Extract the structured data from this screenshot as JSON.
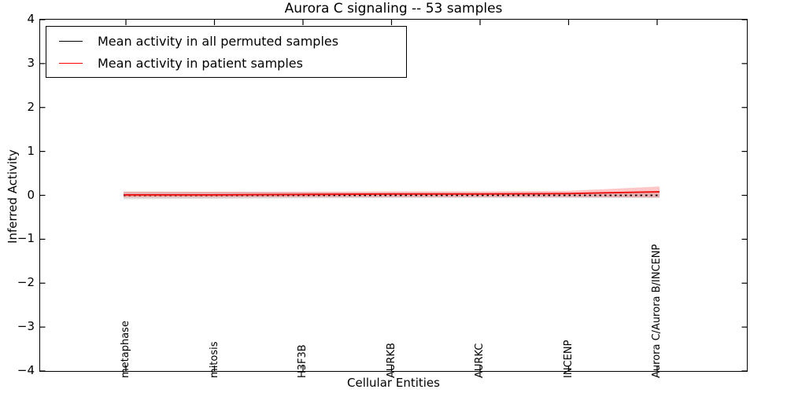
{
  "title": "Aurora C signaling -- 53 samples",
  "legend": {
    "items": [
      {
        "label": "Mean activity in all permuted samples",
        "color": "#000000"
      },
      {
        "label": "Mean activity in patient samples",
        "color": "#ff0000"
      }
    ]
  },
  "axes": {
    "xlabel": "Cellular Entities",
    "ylabel": "Inferred Activity",
    "ytick_labels": [
      "4",
      "3",
      "2",
      "1",
      "0",
      "−1",
      "−2",
      "−3",
      "−4"
    ]
  },
  "chart_data": {
    "type": "line",
    "title": "Aurora C signaling -- 53 samples",
    "xlabel": "Cellular Entities",
    "ylabel": "Inferred Activity",
    "ylim": [
      -4,
      4
    ],
    "ytick_values": [
      4,
      3,
      2,
      1,
      0,
      -1,
      -2,
      -3,
      -4
    ],
    "categories": [
      "metaphase",
      "mitosis",
      "H3F3B",
      "AURKB",
      "AURKC",
      "INCENP",
      "Aurora C/Aurora B/INCENP"
    ],
    "series": [
      {
        "name": "Mean activity in all permuted samples",
        "color": "#000000",
        "style": "dashed",
        "values": [
          0.0,
          0.0,
          0.0,
          0.0,
          0.0,
          0.0,
          0.0
        ]
      },
      {
        "name": "Mean activity in patient samples",
        "color": "#ee1111",
        "style": "solid",
        "values": [
          0.01,
          0.01,
          0.02,
          0.03,
          0.03,
          0.04,
          0.08
        ]
      }
    ],
    "bands": [
      {
        "name": "permuted-confidence-band",
        "color": "#000000",
        "opacity": 0.12,
        "upper": [
          0.09,
          0.08,
          0.07,
          0.06,
          0.06,
          0.06,
          0.06
        ],
        "lower": [
          -0.09,
          -0.08,
          -0.07,
          -0.06,
          -0.06,
          -0.06,
          -0.06
        ]
      },
      {
        "name": "patient-confidence-band",
        "color": "#ff0000",
        "opacity": 0.22,
        "upper": [
          0.08,
          0.08,
          0.08,
          0.09,
          0.09,
          0.1,
          0.2
        ],
        "lower": [
          -0.05,
          -0.05,
          -0.04,
          -0.04,
          -0.04,
          -0.04,
          -0.05
        ]
      }
    ],
    "legend_position": "upper left",
    "grid": false
  }
}
